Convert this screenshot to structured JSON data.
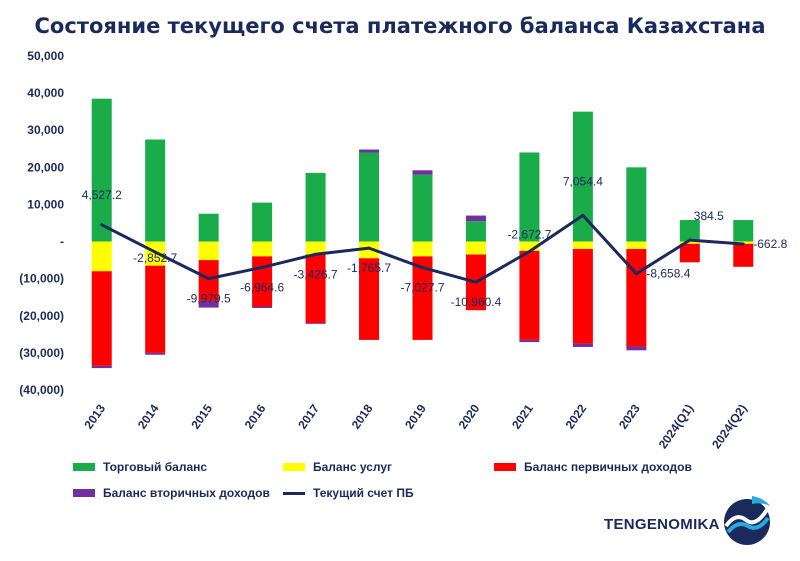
{
  "header": {
    "title": "Состояние текущего счета платежного баланса Казахстана"
  },
  "chart_data": {
    "type": "bar",
    "stacked": true,
    "title": "Состояние текущего счета платежного баланса Казахстана",
    "categories": [
      "2013",
      "2014",
      "2015",
      "2016",
      "2017",
      "2018",
      "2019",
      "2020",
      "2021",
      "2022",
      "2023",
      "2024(Q1)",
      "2024(Q2)"
    ],
    "ylim": [
      -40000,
      50000
    ],
    "yticks": [
      50000,
      40000,
      30000,
      20000,
      10000,
      0,
      -10000,
      -20000,
      -30000,
      -40000
    ],
    "ytick_labels": [
      "50,000",
      "40,000",
      "30,000",
      "20,000",
      "10,000",
      "-",
      "(10,000)",
      "(20,000)",
      "(30,000)",
      "(40,000)"
    ],
    "series": [
      {
        "name": "Торговый баланс",
        "color": "#1aab4b",
        "kind": "bar",
        "values": [
          38500,
          27500,
          7500,
          10500,
          18500,
          24000,
          18000,
          5500,
          24000,
          35000,
          20000,
          5800,
          5800
        ]
      },
      {
        "name": "Баланс услуг",
        "color": "#ffff00",
        "kind": "bar",
        "values": [
          -8000,
          -6500,
          -5000,
          -4000,
          -3500,
          -4500,
          -4000,
          -3500,
          -2500,
          -2000,
          -2000,
          -600,
          -600
        ]
      },
      {
        "name": "Баланс первичных доходов",
        "color": "#ff0000",
        "kind": "bar",
        "values": [
          -25500,
          -23500,
          -11000,
          -13500,
          -18500,
          -22000,
          -22500,
          -15000,
          -24000,
          -25500,
          -26300,
          -5000,
          -6200
        ]
      },
      {
        "name": "Баланс вторичных доходов",
        "color": "#7030a0",
        "kind": "bar",
        "values": [
          -600,
          -500,
          -1800,
          -400,
          -200,
          800,
          1200,
          1500,
          -600,
          -900,
          -1000,
          0,
          0
        ]
      },
      {
        "name": "Текущий счет ПБ",
        "color": "#1b2a5c",
        "kind": "line",
        "values": [
          4527.2,
          -2852.7,
          -9979.5,
          -6964.6,
          -3426.7,
          -1765.7,
          -7027.7,
          -10960.4,
          -2672.7,
          7054.4,
          -8658.4,
          384.5,
          -662.8
        ]
      }
    ],
    "data_labels": [
      "4,527.2",
      "-2,852.7",
      "-9,979.5",
      "-6,964.6",
      "-3,426.7",
      "-1,765.7",
      "-7,027.7",
      "-10,960.4",
      "-2,672.7",
      "7,054.4",
      "-8,658.4",
      "384.5",
      "-662.8"
    ]
  },
  "legend": {
    "items": [
      "Торговый баланс",
      "Баланс услуг",
      "Баланс первичных доходов",
      "Баланс вторичных доходов",
      "Текущий счет ПБ"
    ]
  },
  "brand": {
    "name": "TENGENOMIKA"
  }
}
